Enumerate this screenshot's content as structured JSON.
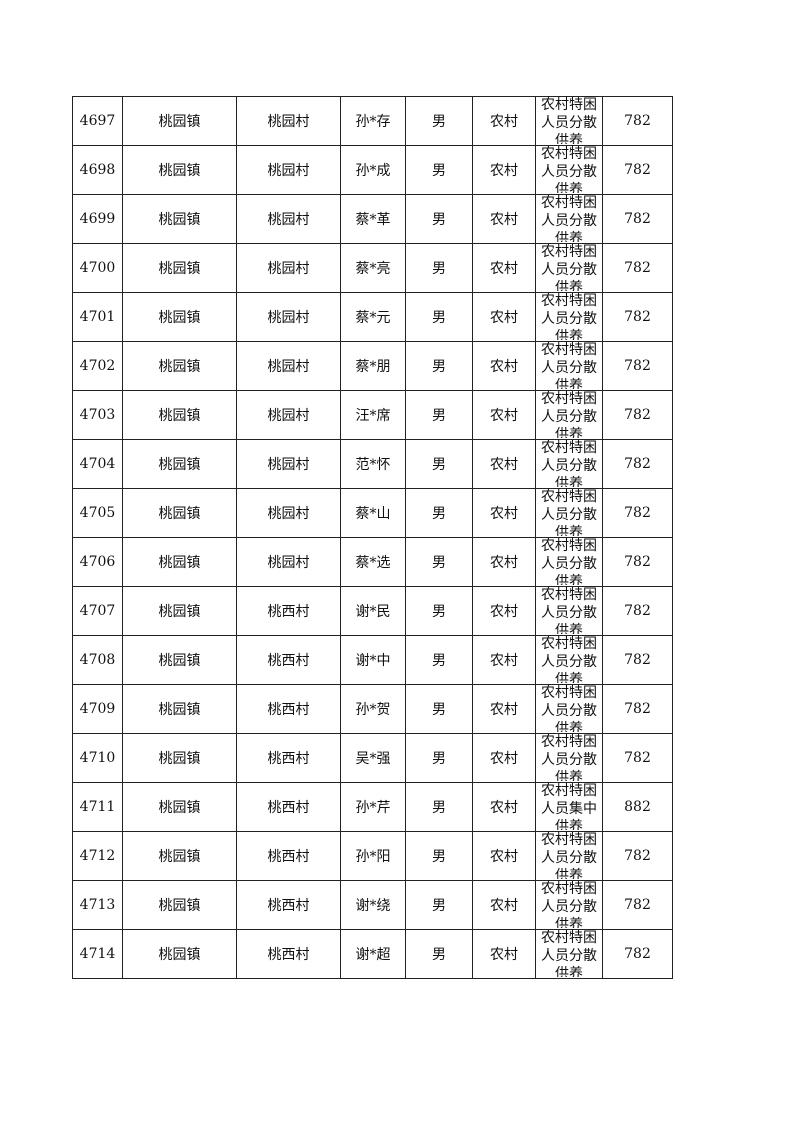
{
  "table": {
    "rows": [
      [
        "4697",
        "桃园镇",
        "桃园村",
        "孙*存",
        "男",
        "农村",
        "农村特困人员分散供养",
        "782"
      ],
      [
        "4698",
        "桃园镇",
        "桃园村",
        "孙*成",
        "男",
        "农村",
        "农村特困人员分散供养",
        "782"
      ],
      [
        "4699",
        "桃园镇",
        "桃园村",
        "蔡*革",
        "男",
        "农村",
        "农村特困人员分散供养",
        "782"
      ],
      [
        "4700",
        "桃园镇",
        "桃园村",
        "蔡*亮",
        "男",
        "农村",
        "农村特困人员分散供养",
        "782"
      ],
      [
        "4701",
        "桃园镇",
        "桃园村",
        "蔡*元",
        "男",
        "农村",
        "农村特困人员分散供养",
        "782"
      ],
      [
        "4702",
        "桃园镇",
        "桃园村",
        "蔡*朋",
        "男",
        "农村",
        "农村特困人员分散供养",
        "782"
      ],
      [
        "4703",
        "桃园镇",
        "桃园村",
        "汪*席",
        "男",
        "农村",
        "农村特困人员分散供养",
        "782"
      ],
      [
        "4704",
        "桃园镇",
        "桃园村",
        "范*怀",
        "男",
        "农村",
        "农村特困人员分散供养",
        "782"
      ],
      [
        "4705",
        "桃园镇",
        "桃园村",
        "蔡*山",
        "男",
        "农村",
        "农村特困人员分散供养",
        "782"
      ],
      [
        "4706",
        "桃园镇",
        "桃园村",
        "蔡*选",
        "男",
        "农村",
        "农村特困人员分散供养",
        "782"
      ],
      [
        "4707",
        "桃园镇",
        "桃西村",
        "谢*民",
        "男",
        "农村",
        "农村特困人员分散供养",
        "782"
      ],
      [
        "4708",
        "桃园镇",
        "桃西村",
        "谢*中",
        "男",
        "农村",
        "农村特困人员分散供养",
        "782"
      ],
      [
        "4709",
        "桃园镇",
        "桃西村",
        "孙*贺",
        "男",
        "农村",
        "农村特困人员分散供养",
        "782"
      ],
      [
        "4710",
        "桃园镇",
        "桃西村",
        "吴*强",
        "男",
        "农村",
        "农村特困人员分散供养",
        "782"
      ],
      [
        "4711",
        "桃园镇",
        "桃西村",
        "孙*芹",
        "男",
        "农村",
        "农村特困人员集中供养",
        "882"
      ],
      [
        "4712",
        "桃园镇",
        "桃西村",
        "孙*阳",
        "男",
        "农村",
        "农村特困人员分散供养",
        "782"
      ],
      [
        "4713",
        "桃园镇",
        "桃西村",
        "谢*绕",
        "男",
        "农村",
        "农村特困人员分散供养",
        "782"
      ],
      [
        "4714",
        "桃园镇",
        "桃西村",
        "谢*超",
        "男",
        "农村",
        "农村特困人员分散供养",
        "782"
      ]
    ]
  }
}
